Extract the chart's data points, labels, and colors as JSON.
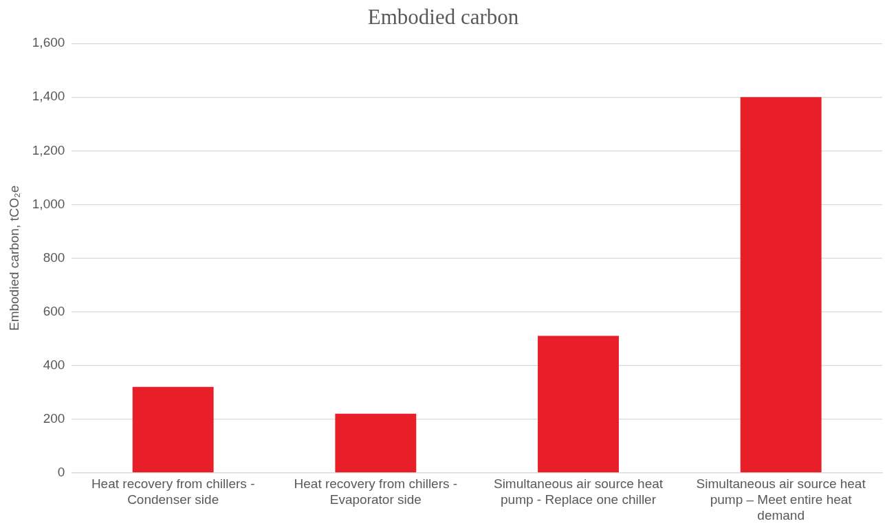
{
  "chart_data": {
    "type": "bar",
    "title": "Embodied carbon",
    "ylabel": "Embodied carbon, tCO₂e",
    "categories": [
      "Heat recovery from chillers - Condenser side",
      "Heat recovery from chillers - Evaporator side",
      "Simultaneous air source heat pump - Replace one chiller",
      "Simultaneous air source heat pump – Meet entire heat demand"
    ],
    "values": [
      320,
      220,
      510,
      1400
    ],
    "color": "#e81f28",
    "ylim": [
      0,
      1600
    ],
    "yticks": [
      {
        "value": 0,
        "label": "0"
      },
      {
        "value": 200,
        "label": "200"
      },
      {
        "value": 400,
        "label": "400"
      },
      {
        "value": 600,
        "label": "600"
      },
      {
        "value": 800,
        "label": "800"
      },
      {
        "value": 1000,
        "label": "1,000"
      },
      {
        "value": 1200,
        "label": "1,200"
      },
      {
        "value": 1400,
        "label": "1,400"
      },
      {
        "value": 1600,
        "label": "1,600"
      }
    ],
    "grid": "y",
    "legend": false
  }
}
